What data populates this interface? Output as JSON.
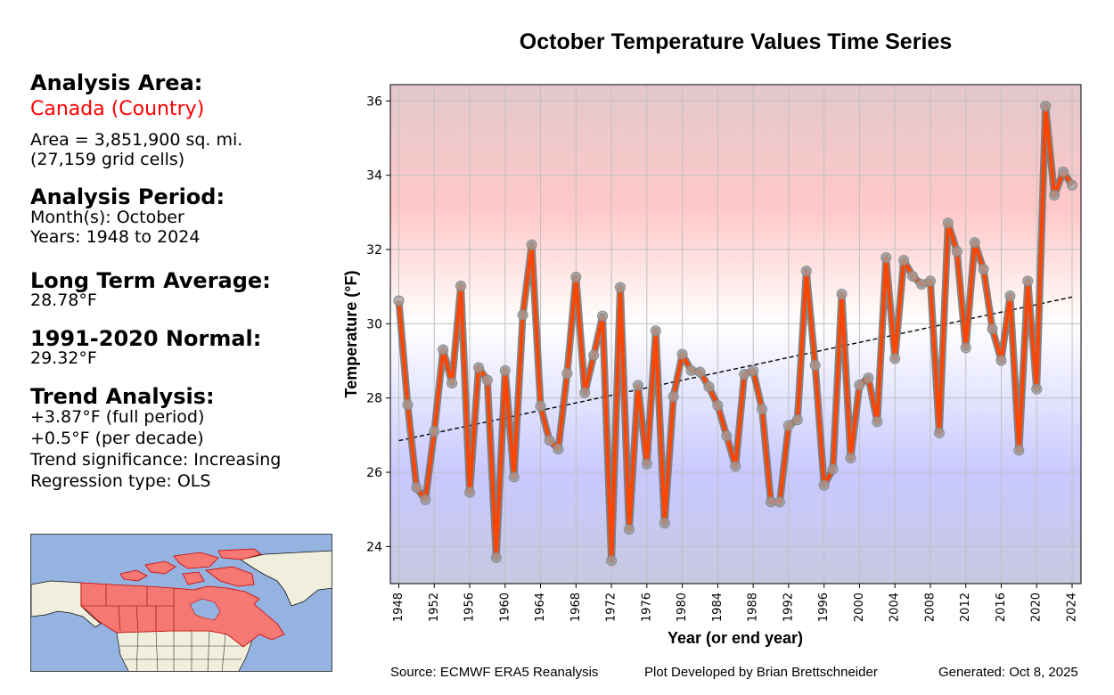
{
  "left_panel": {
    "area_heading": "Analysis Area:",
    "area_name": "Canada (Country)",
    "area_size": "Area = 3,851,900 sq. mi.",
    "grid_cells": "(27,159 grid cells)",
    "period_heading": "Analysis Period:",
    "months": "Month(s): October",
    "years": "Years: 1948 to 2024",
    "lta_heading": "Long Term Average:",
    "lta_value": "28.78°F",
    "normal_heading": "1991-2020 Normal:",
    "normal_value": "29.32°F",
    "trend_heading": "Trend Analysis:",
    "trend_full": "+3.87°F (full period)",
    "trend_decade": "+0.5°F (per decade)",
    "trend_significance": "Trend significance: Increasing",
    "regression_type": "Regression type: OLS"
  },
  "map": {
    "label": "Canada highlighted on North America map",
    "colors": {
      "ocean": "#94b3e0",
      "land": "#f0eedc",
      "highlight": "#f57872",
      "highlight_border": "#cc0000"
    }
  },
  "footer": {
    "source": "Source: ECMWF ERA5 Reanalysis",
    "credit": "Plot Developed by Brian Brettschneider",
    "generated": "Generated: Oct 8, 2025"
  },
  "colors": {
    "line": "#ff4500",
    "line_outline": "#707070",
    "marker": "#a0a0a0",
    "trend": "#000000",
    "grid": "#c0c0c0"
  },
  "chart_data": {
    "type": "line",
    "title": "October Temperature Values Time Series",
    "xlabel": "Year (or end year)",
    "ylabel": "Temperature (°F)",
    "xlim": [
      1947,
      2025
    ],
    "ylim": [
      23,
      36.5
    ],
    "xticks": [
      1948,
      1952,
      1956,
      1960,
      1964,
      1968,
      1972,
      1976,
      1980,
      1984,
      1988,
      1992,
      1996,
      2000,
      2004,
      2008,
      2012,
      2016,
      2020,
      2024
    ],
    "yticks": [
      24,
      26,
      28,
      30,
      32,
      34,
      36
    ],
    "grid": true,
    "background_gradient": "blue (cold) at bottom to white at 30°F to red (warm) at top",
    "x": [
      1948,
      1949,
      1950,
      1951,
      1952,
      1953,
      1954,
      1955,
      1956,
      1957,
      1958,
      1959,
      1960,
      1961,
      1962,
      1963,
      1964,
      1965,
      1966,
      1967,
      1968,
      1969,
      1970,
      1971,
      1972,
      1973,
      1974,
      1975,
      1976,
      1977,
      1978,
      1979,
      1980,
      1981,
      1982,
      1983,
      1984,
      1985,
      1986,
      1987,
      1988,
      1989,
      1990,
      1991,
      1992,
      1993,
      1994,
      1995,
      1996,
      1997,
      1998,
      1999,
      2000,
      2001,
      2002,
      2003,
      2004,
      2005,
      2006,
      2007,
      2008,
      2009,
      2010,
      2011,
      2012,
      2013,
      2014,
      2015,
      2016,
      2017,
      2018,
      2019,
      2020,
      2021,
      2022,
      2023,
      2024
    ],
    "series": [
      {
        "name": "October Temperature",
        "values": [
          30.62,
          27.82,
          25.59,
          25.26,
          27.1,
          29.3,
          28.4,
          31.02,
          25.46,
          28.82,
          28.48,
          23.7,
          28.74,
          25.87,
          30.24,
          32.13,
          27.78,
          26.86,
          26.62,
          28.66,
          31.26,
          28.14,
          29.15,
          30.21,
          23.62,
          30.98,
          24.46,
          28.34,
          26.22,
          29.81,
          24.63,
          28.04,
          29.18,
          28.74,
          28.7,
          28.3,
          27.8,
          26.98,
          26.16,
          28.64,
          28.74,
          27.7,
          25.2,
          25.2,
          27.26,
          27.41,
          31.42,
          28.88,
          25.65,
          26.08,
          30.8,
          26.38,
          28.35,
          28.54,
          27.36,
          31.78,
          29.06,
          31.71,
          31.28,
          31.06,
          31.15,
          27.06,
          32.71,
          31.95,
          29.35,
          32.19,
          31.47,
          29.86,
          29.01,
          30.75,
          26.59,
          31.15,
          28.24,
          35.86,
          33.46,
          34.09,
          33.73
        ]
      },
      {
        "name": "OLS trend",
        "style": "dashed",
        "x": [
          1948,
          2024
        ],
        "values": [
          26.85,
          30.72
        ]
      }
    ]
  }
}
